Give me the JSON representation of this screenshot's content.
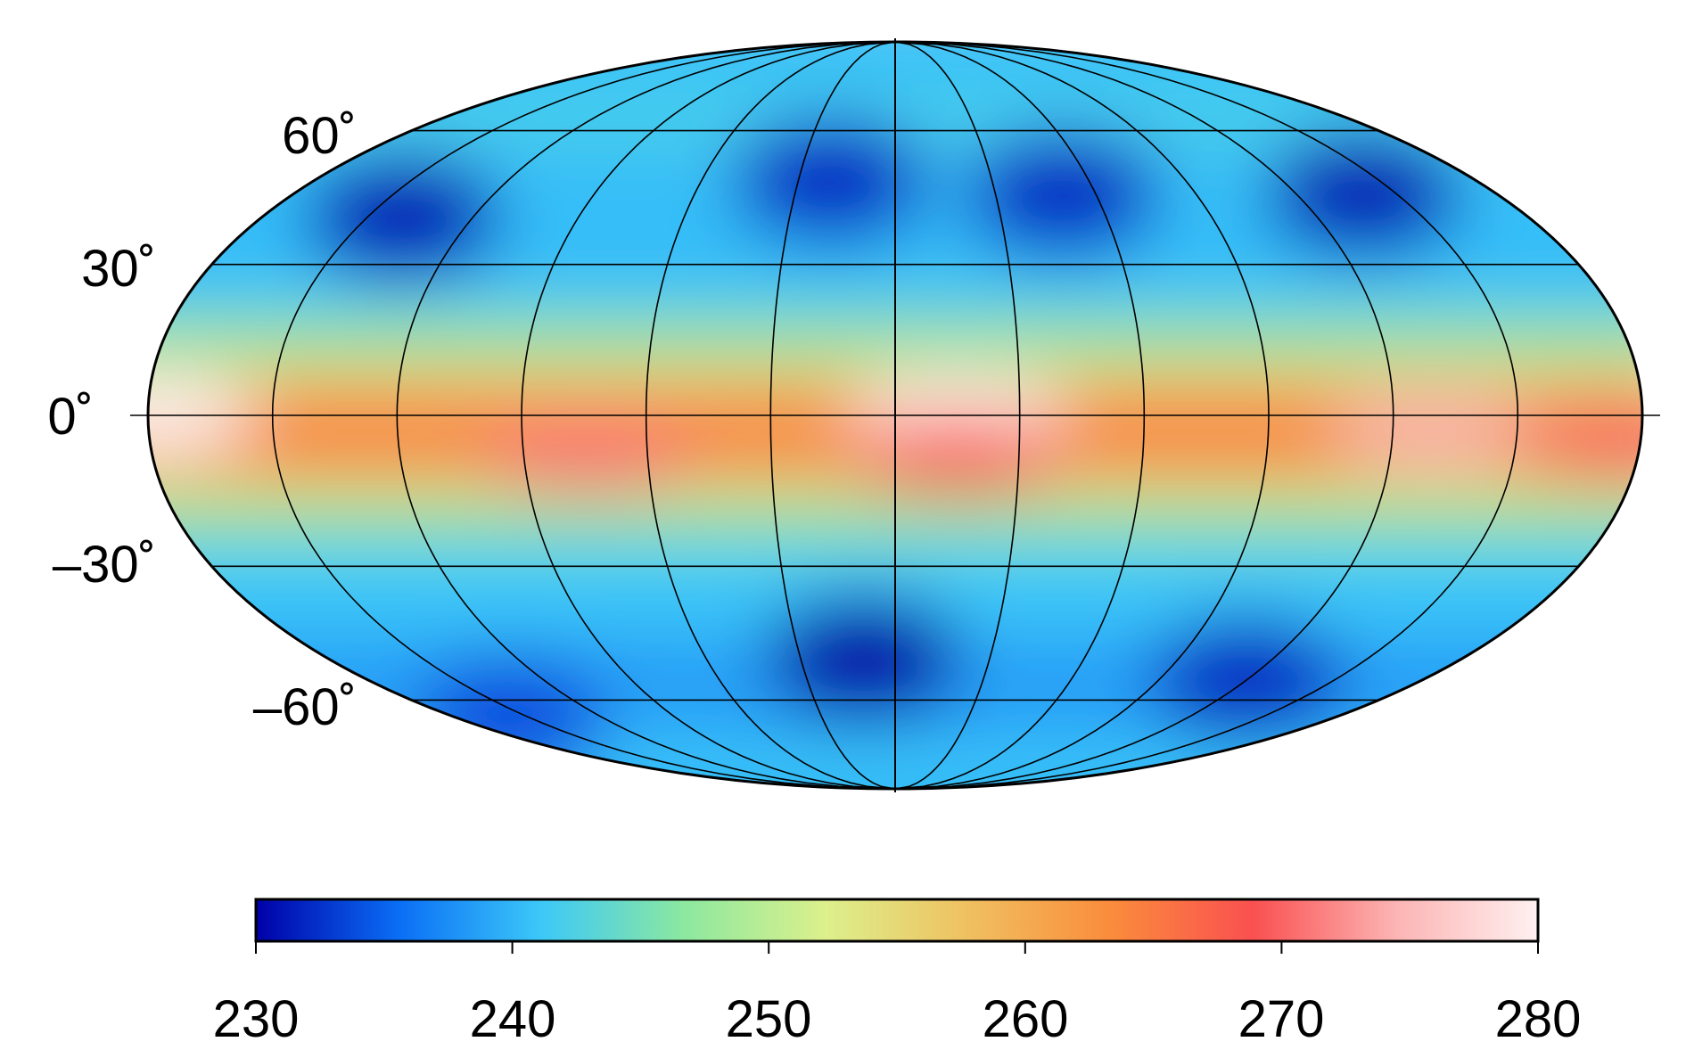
{
  "map": {
    "projection": "mollweide",
    "graticule": {
      "longitude_step_deg": 30,
      "latitudes_deg": [
        60,
        30,
        0,
        -30,
        -60
      ]
    },
    "lat_labels": [
      "60˚",
      "30˚",
      "0˚",
      "–30˚",
      "–60˚"
    ],
    "field": {
      "description_colors": "rainbow scale from dark blue (low) to white (high)",
      "equatorial_hotspots": [
        {
          "lon": -180,
          "lat": 0,
          "value": 280
        },
        {
          "lon": -75,
          "lat": -8,
          "value": 271
        },
        {
          "lon": 15,
          "lat": 0,
          "value": 280
        },
        {
          "lon": 15,
          "lat": -8,
          "value": 269
        },
        {
          "lon": 130,
          "lat": -3,
          "value": 274
        },
        {
          "lon": 175,
          "lat": -5,
          "value": 270
        }
      ],
      "cold_spots": [
        {
          "lon": -140,
          "lat": 40,
          "value": 231
        },
        {
          "lon": -20,
          "lat": 48,
          "value": 232
        },
        {
          "lon": 50,
          "lat": 45,
          "value": 232
        },
        {
          "lon": 140,
          "lat": 45,
          "value": 231
        },
        {
          "lon": -10,
          "lat": -50,
          "value": 230
        },
        {
          "lon": 120,
          "lat": -55,
          "value": 232
        },
        {
          "lon": -160,
          "lat": -65,
          "value": 234
        }
      ]
    }
  },
  "colorbar": {
    "min": 230,
    "max": 280,
    "tick_labels": [
      "230",
      "240",
      "250",
      "260",
      "270",
      "280"
    ],
    "colors": [
      "#0000a8",
      "#0a6ef5",
      "#3cc8f8",
      "#8ce8a0",
      "#dcf08c",
      "#f0c060",
      "#fa8c3c",
      "#fa5050",
      "#fcb4b4",
      "#fff0f0"
    ]
  }
}
